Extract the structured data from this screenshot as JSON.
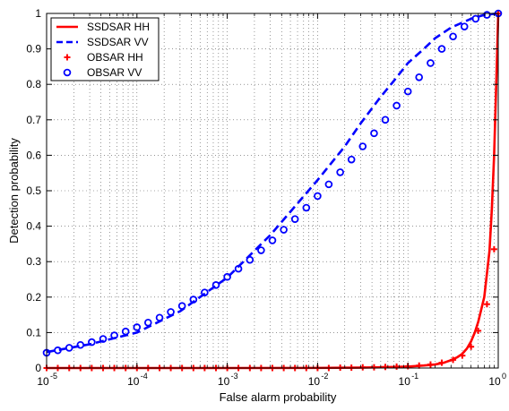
{
  "chart_data": {
    "type": "line",
    "xlabel": "False alarm probability",
    "ylabel": "Detection probability",
    "x_scale": "log",
    "xlim": [
      1e-05,
      1
    ],
    "ylim": [
      0,
      1
    ],
    "grid": true,
    "legend_position": "top-left",
    "x_ticks": [
      {
        "value": 1e-05,
        "base": "10",
        "exp": "-5"
      },
      {
        "value": 0.0001,
        "base": "10",
        "exp": "-4"
      },
      {
        "value": 0.001,
        "base": "10",
        "exp": "-3"
      },
      {
        "value": 0.01,
        "base": "10",
        "exp": "-2"
      },
      {
        "value": 0.1,
        "base": "10",
        "exp": "-1"
      },
      {
        "value": 1,
        "base": "10",
        "exp": "0"
      }
    ],
    "y_ticks": [
      0,
      0.1,
      0.2,
      0.3,
      0.4,
      0.5,
      0.6,
      0.7,
      0.8,
      0.9,
      1
    ],
    "y_tick_labels": [
      "0",
      "0.1",
      "0.2",
      "0.3",
      "0.4",
      "0.5",
      "0.6",
      "0.7",
      "0.8",
      "0.9",
      "1"
    ],
    "series": [
      {
        "name": "SSDSAR HH",
        "style": "solid-line",
        "color": "#ff0000",
        "x": [
          1e-05,
          0.001,
          0.01,
          0.03,
          0.05,
          0.1,
          0.15,
          0.2,
          0.25,
          0.3,
          0.35,
          0.4,
          0.45,
          0.5,
          0.55,
          0.6,
          0.7,
          0.8,
          0.85,
          0.9,
          0.95,
          1
        ],
        "y": [
          0,
          0,
          0.0003,
          0.001,
          0.002,
          0.004,
          0.007,
          0.01,
          0.015,
          0.022,
          0.03,
          0.04,
          0.055,
          0.075,
          0.1,
          0.13,
          0.2,
          0.33,
          0.45,
          0.6,
          0.8,
          1
        ]
      },
      {
        "name": "SSDSAR VV",
        "style": "dashed-line",
        "color": "#0000ff",
        "x": [
          1e-05,
          3e-05,
          0.0001,
          0.0003,
          0.001,
          0.003,
          0.01,
          0.02,
          0.03,
          0.05,
          0.07,
          0.1,
          0.15,
          0.2,
          0.3,
          0.5,
          0.7,
          1
        ],
        "y": [
          0.045,
          0.067,
          0.1,
          0.16,
          0.255,
          0.375,
          0.53,
          0.625,
          0.69,
          0.765,
          0.81,
          0.86,
          0.9,
          0.93,
          0.96,
          0.985,
          0.996,
          1
        ]
      },
      {
        "name": "OBSAR HH",
        "style": "plus-marker",
        "color": "#ff0000",
        "x": [
          1e-05,
          1.33e-05,
          1.78e-05,
          2.37e-05,
          3.16e-05,
          4.22e-05,
          5.62e-05,
          7.5e-05,
          0.0001,
          0.000133,
          0.000178,
          0.000237,
          0.000316,
          0.000422,
          0.000562,
          0.00075,
          0.001,
          0.00133,
          0.00178,
          0.00237,
          0.00316,
          0.00422,
          0.00562,
          0.0075,
          0.01,
          0.0133,
          0.0178,
          0.0237,
          0.0316,
          0.0422,
          0.0562,
          0.075,
          0.1,
          0.133,
          0.178,
          0.237,
          0.316,
          0.4,
          0.5,
          0.6,
          0.75,
          0.9,
          1
        ],
        "y": [
          0,
          0,
          0,
          0,
          0,
          0,
          0,
          0,
          0,
          0,
          0,
          0,
          0,
          0,
          0,
          0,
          0,
          0,
          0,
          0,
          0,
          0,
          0,
          0,
          0,
          0,
          0.001,
          0.001,
          0.002,
          0.002,
          0.003,
          0.004,
          0.005,
          0.007,
          0.01,
          0.015,
          0.023,
          0.035,
          0.06,
          0.105,
          0.18,
          0.335,
          1
        ]
      },
      {
        "name": "OBSAR VV",
        "style": "circle-marker",
        "color": "#0000ff",
        "x": [
          1e-05,
          1.33e-05,
          1.78e-05,
          2.37e-05,
          3.16e-05,
          4.22e-05,
          5.62e-05,
          7.5e-05,
          0.0001,
          0.000133,
          0.000178,
          0.000237,
          0.000316,
          0.000422,
          0.000562,
          0.00075,
          0.001,
          0.00133,
          0.00178,
          0.00237,
          0.00316,
          0.00422,
          0.00562,
          0.0075,
          0.01,
          0.0133,
          0.0178,
          0.0237,
          0.0316,
          0.0422,
          0.0562,
          0.075,
          0.1,
          0.133,
          0.178,
          0.237,
          0.316,
          0.422,
          0.562,
          0.75,
          1
        ],
        "y": [
          0.043,
          0.05,
          0.057,
          0.065,
          0.073,
          0.082,
          0.092,
          0.103,
          0.115,
          0.128,
          0.142,
          0.158,
          0.175,
          0.193,
          0.213,
          0.234,
          0.257,
          0.28,
          0.305,
          0.332,
          0.36,
          0.39,
          0.42,
          0.452,
          0.485,
          0.518,
          0.552,
          0.588,
          0.625,
          0.662,
          0.7,
          0.74,
          0.78,
          0.82,
          0.86,
          0.9,
          0.935,
          0.963,
          0.985,
          0.996,
          1
        ]
      }
    ]
  }
}
